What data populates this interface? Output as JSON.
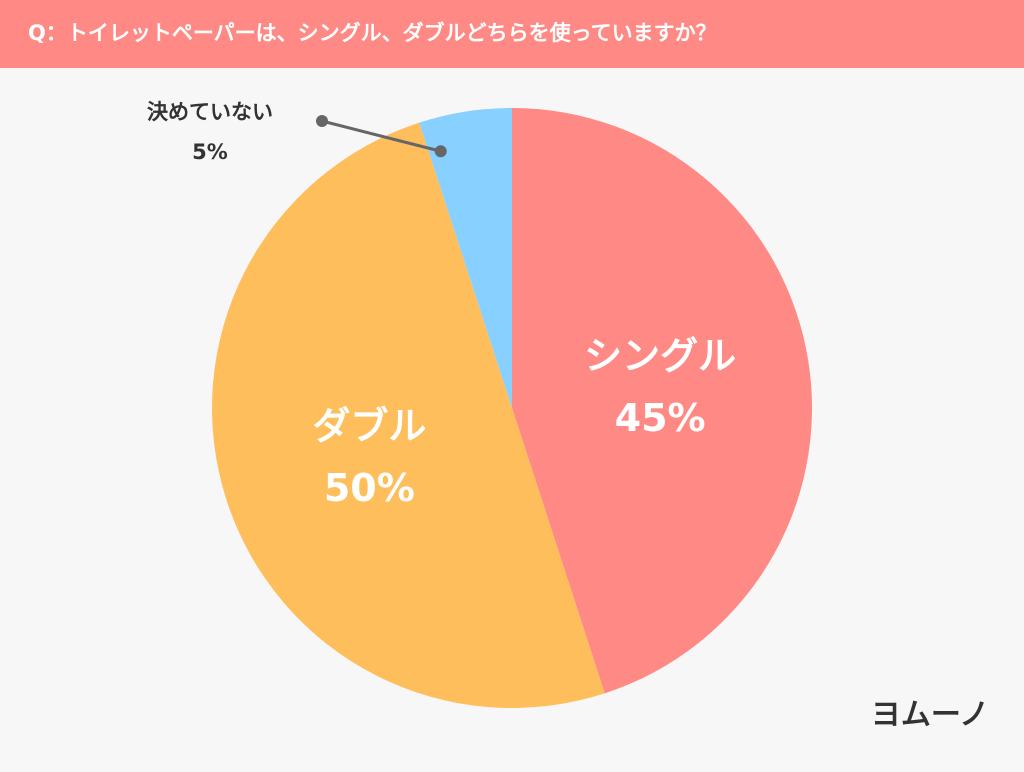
{
  "chart_data": {
    "type": "pie",
    "title": "Q：トイレットペーパーは、シングル、ダブルどちらを使っていますか？",
    "categories": [
      "シングル",
      "ダブル",
      "決めていない"
    ],
    "values": [
      45,
      50,
      5
    ],
    "value_labels": [
      "45%",
      "50%",
      "5%"
    ],
    "colors": [
      "#ff8a85",
      "#ffbe5c",
      "#87d0ff"
    ],
    "logo": "ヨムーノ"
  }
}
